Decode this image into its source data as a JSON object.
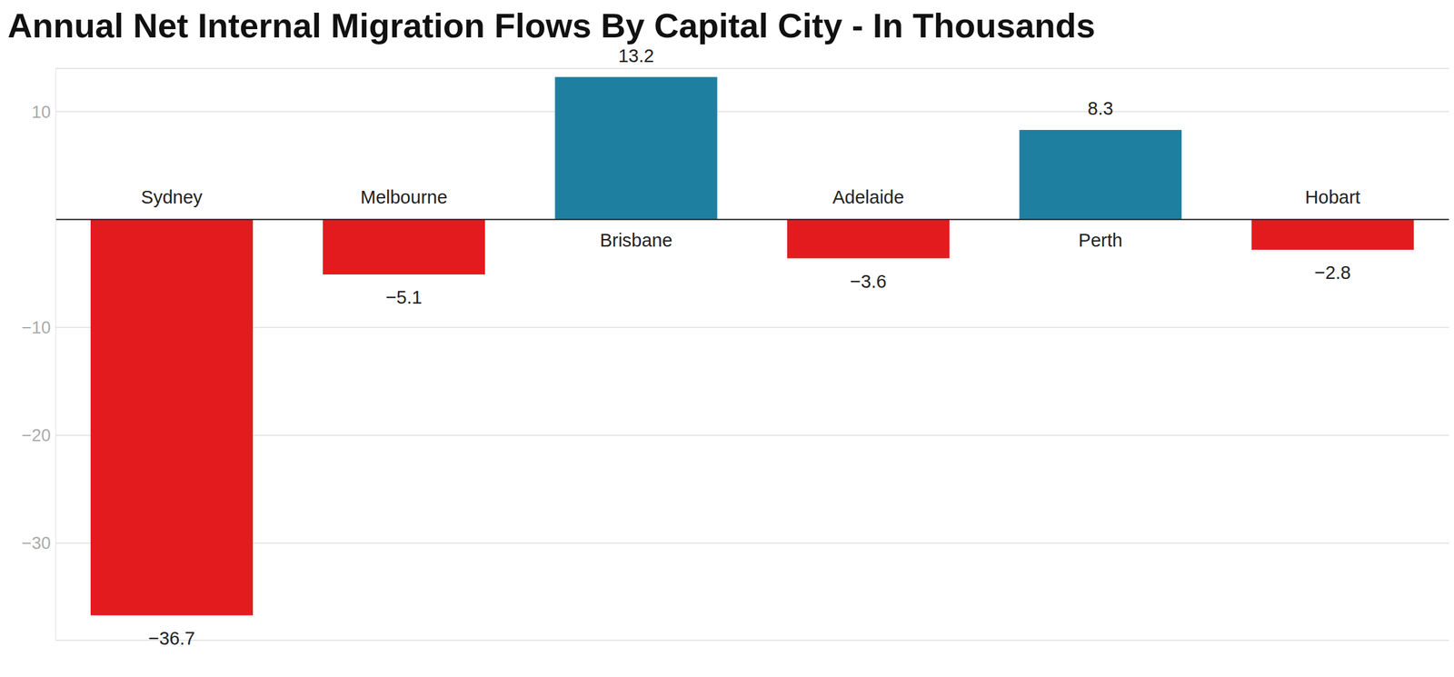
{
  "chart_data": {
    "type": "bar",
    "title": "Annual Net Internal Migration Flows By Capital City - In Thousands",
    "categories": [
      "Sydney",
      "Melbourne",
      "Brisbane",
      "Adelaide",
      "Perth",
      "Hobart"
    ],
    "values": [
      -36.7,
      -5.1,
      13.2,
      -3.6,
      8.3,
      -2.8
    ],
    "value_labels": [
      "−36.7",
      "−5.1",
      "13.2",
      "−3.6",
      "8.3",
      "−2.8"
    ],
    "colors": [
      "#e31b1f",
      "#e31b1f",
      "#1f7fa0",
      "#e31b1f",
      "#1f7fa0",
      "#e31b1f"
    ],
    "ylim": [
      -39,
      14
    ],
    "yticks": [
      {
        "value": -30,
        "label": "−30"
      },
      {
        "value": -20,
        "label": "−20"
      },
      {
        "value": -10,
        "label": "−10"
      },
      10
    ],
    "grid": true,
    "data_labels": true
  }
}
